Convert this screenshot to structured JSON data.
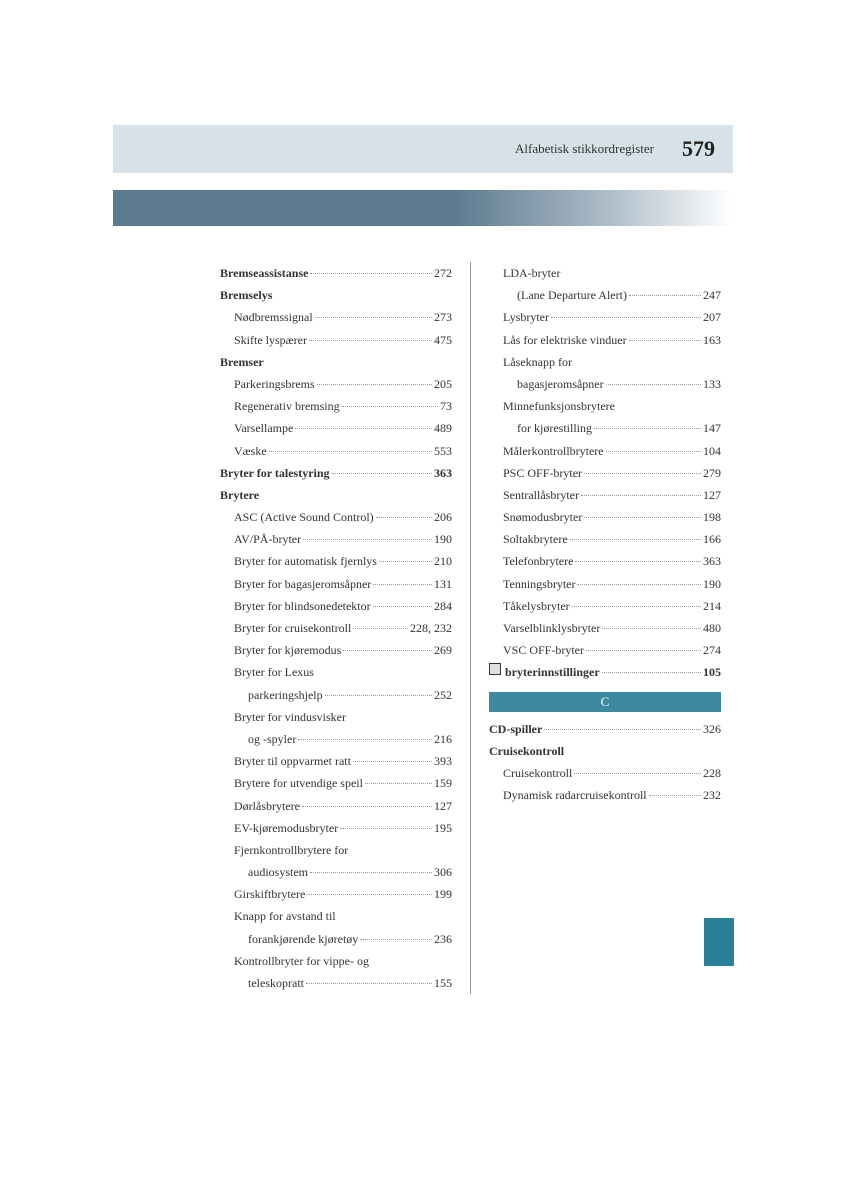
{
  "header": {
    "title": "Alfabetisk stikkordregister",
    "page_number": "579"
  },
  "section_c_label": "C",
  "left_column": [
    {
      "type": "main",
      "label": "Bremseassistanse",
      "page": "272"
    },
    {
      "type": "header",
      "label": "Bremselys"
    },
    {
      "type": "sub",
      "label": "Nødbremssignal",
      "page": "273"
    },
    {
      "type": "sub",
      "label": "Skifte lyspærer",
      "page": "475"
    },
    {
      "type": "header",
      "label": "Bremser"
    },
    {
      "type": "sub",
      "label": "Parkeringsbrems",
      "page": "205"
    },
    {
      "type": "sub",
      "label": "Regenerativ bremsing",
      "page": "73"
    },
    {
      "type": "sub",
      "label": "Varsellampe",
      "page": "489"
    },
    {
      "type": "sub",
      "label": "Væske",
      "page": "553"
    },
    {
      "type": "main",
      "label": "Bryter for talestyring",
      "page": "363",
      "bold": true
    },
    {
      "type": "header",
      "label": "Brytere"
    },
    {
      "type": "sub",
      "label": "ASC (Active Sound Control)",
      "page": "206"
    },
    {
      "type": "sub",
      "label": "AV/PÅ-bryter",
      "page": "190"
    },
    {
      "type": "sub",
      "label": "Bryter for automatisk fjernlys",
      "page": "210"
    },
    {
      "type": "sub",
      "label": "Bryter for bagasjeromsåpner",
      "page": "131"
    },
    {
      "type": "sub",
      "label": "Bryter for blindsonedetektor",
      "page": "284"
    },
    {
      "type": "sub",
      "label": "Bryter for cruisekontroll",
      "page": "228, 232"
    },
    {
      "type": "sub",
      "label": "Bryter for kjøremodus",
      "page": "269"
    },
    {
      "type": "sub-noline",
      "label": "Bryter for Lexus"
    },
    {
      "type": "sub2",
      "label": "parkeringshjelp",
      "page": "252"
    },
    {
      "type": "sub-noline",
      "label": "Bryter for vindusvisker"
    },
    {
      "type": "sub2",
      "label": "og -spyler",
      "page": "216"
    },
    {
      "type": "sub",
      "label": "Bryter til oppvarmet ratt",
      "page": "393"
    },
    {
      "type": "sub",
      "label": "Brytere for utvendige speil",
      "page": "159"
    },
    {
      "type": "sub",
      "label": "Dørlåsbrytere",
      "page": "127"
    },
    {
      "type": "sub",
      "label": "EV-kjøremodusbryter",
      "page": "195"
    },
    {
      "type": "sub-noline",
      "label": "Fjernkontrollbrytere for"
    },
    {
      "type": "sub2",
      "label": "audiosystem",
      "page": "306"
    },
    {
      "type": "sub",
      "label": "Girskiftbrytere",
      "page": "199"
    },
    {
      "type": "sub-noline",
      "label": "Knapp for avstand til"
    },
    {
      "type": "sub2",
      "label": "forankjørende kjøretøy",
      "page": "236"
    },
    {
      "type": "sub-noline",
      "label": "Kontrollbryter for vippe- og"
    },
    {
      "type": "sub2",
      "label": "teleskopratt",
      "page": "155"
    }
  ],
  "right_column_top": [
    {
      "type": "sub-noline",
      "label": "LDA-bryter"
    },
    {
      "type": "sub2",
      "label": "(Lane Departure Alert)",
      "page": "247"
    },
    {
      "type": "sub",
      "label": "Lysbryter",
      "page": "207"
    },
    {
      "type": "sub",
      "label": "Lås for elektriske vinduer",
      "page": "163"
    },
    {
      "type": "sub-noline",
      "label": "Låseknapp for"
    },
    {
      "type": "sub2",
      "label": "bagasjeromsåpner",
      "page": "133"
    },
    {
      "type": "sub-noline",
      "label": "Minnefunksjonsbrytere"
    },
    {
      "type": "sub2",
      "label": "for kjørestilling",
      "page": "147"
    },
    {
      "type": "sub",
      "label": "Målerkontrollbrytere",
      "page": "104"
    },
    {
      "type": "sub",
      "label": "PSC OFF-bryter",
      "page": "279"
    },
    {
      "type": "sub",
      "label": "Sentrallåsbryter",
      "page": "127"
    },
    {
      "type": "sub",
      "label": "Snømodusbryter",
      "page": "198"
    },
    {
      "type": "sub",
      "label": "Soltakbrytere",
      "page": "166"
    },
    {
      "type": "sub",
      "label": "Telefonbrytere",
      "page": "363"
    },
    {
      "type": "sub",
      "label": "Tenningsbryter",
      "page": "190"
    },
    {
      "type": "sub",
      "label": "Tåkelysbryter",
      "page": "214"
    },
    {
      "type": "sub",
      "label": "Varselblinklysbryter",
      "page": "480"
    },
    {
      "type": "sub",
      "label": "VSC OFF-bryter",
      "page": "274"
    },
    {
      "type": "icon-main",
      "label": "bryterinnstillinger",
      "page": "105",
      "bold": true
    }
  ],
  "right_column_c": [
    {
      "type": "main",
      "label": "CD-spiller",
      "page": "326"
    },
    {
      "type": "header",
      "label": "Cruisekontroll"
    },
    {
      "type": "sub",
      "label": "Cruisekontroll",
      "page": "228"
    },
    {
      "type": "sub",
      "label": "Dynamisk radarcruisekontroll",
      "page": "232"
    }
  ]
}
